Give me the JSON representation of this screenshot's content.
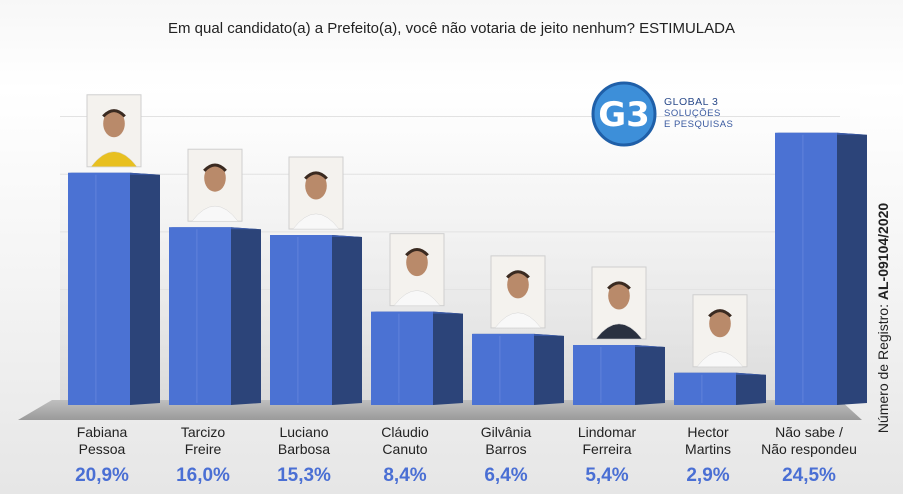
{
  "title": "Em qual candidato(a) a Prefeito(a), você não votaria de jeito nenhum? ESTIMULADA",
  "registro": {
    "prefix": "Número de Registro: ",
    "code": "AL-09104/2020"
  },
  "logo": {
    "mark": "G3",
    "line1": "GLOBAL 3",
    "line2": "SOLUÇÕES",
    "line3": "E PESQUISAS"
  },
  "colors": {
    "bar_front": "#4b72d3",
    "bar_side": "#2c4479",
    "bar_top": "#3a5aa8",
    "value_text": "#4a6fd4",
    "logo_blue": "#2a7bd0"
  },
  "chart_data": {
    "type": "bar",
    "title": "Em qual candidato(a) a Prefeito(a), você não votaria de jeito nenhum? ESTIMULADA",
    "categories": [
      [
        "Fabiana",
        "Pessoa"
      ],
      [
        "Tarcizo",
        "Freire"
      ],
      [
        "Luciano",
        "Barbosa"
      ],
      [
        "Cláudio",
        "Canuto"
      ],
      [
        "Gilvânia",
        "Barros"
      ],
      [
        "Lindomar",
        "Ferreira"
      ],
      [
        "Hector",
        "Martins"
      ],
      [
        "Não sabe /",
        "Não respondeu"
      ]
    ],
    "values": [
      20.9,
      16.0,
      15.3,
      8.4,
      6.4,
      5.4,
      2.9,
      24.5
    ],
    "value_labels": [
      "20,9%",
      "16,0%",
      "15,3%",
      "8,4%",
      "6,4%",
      "5,4%",
      "2,9%",
      "24,5%"
    ],
    "has_photo": [
      true,
      true,
      true,
      true,
      true,
      true,
      true,
      false
    ],
    "ylim": [
      0,
      27
    ],
    "grid": true
  }
}
